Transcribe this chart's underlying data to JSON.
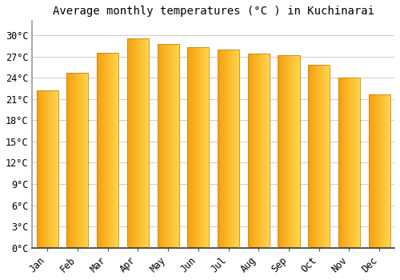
{
  "title": "Average monthly temperatures (°C ) in Kuchinarai",
  "months": [
    "Jan",
    "Feb",
    "Mar",
    "Apr",
    "May",
    "Jun",
    "Jul",
    "Aug",
    "Sep",
    "Oct",
    "Nov",
    "Dec"
  ],
  "temperatures": [
    22.2,
    24.7,
    27.5,
    29.5,
    28.8,
    28.3,
    28.0,
    27.4,
    27.2,
    25.8,
    24.0,
    21.7
  ],
  "bar_color_left": "#F5A623",
  "bar_color_right": "#FFD060",
  "bar_edge_color": "#C8860A",
  "background_color": "#FFFFFF",
  "grid_color": "#CCCCCC",
  "yticks": [
    0,
    3,
    6,
    9,
    12,
    15,
    18,
    21,
    24,
    27,
    30
  ],
  "ylim": [
    0,
    32
  ],
  "title_fontsize": 10,
  "tick_fontsize": 8.5,
  "font_family": "monospace"
}
